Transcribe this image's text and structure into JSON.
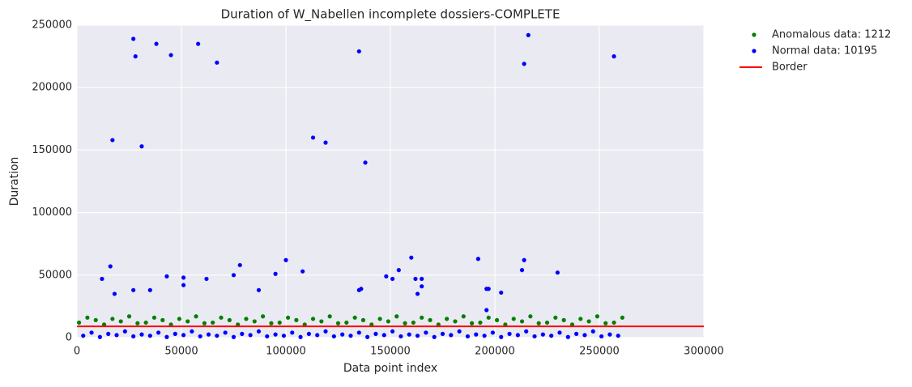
{
  "chart_data": {
    "type": "scatter",
    "title": "Duration of W_Nabellen incomplete dossiers-COMPLETE",
    "x_label": "Data point index",
    "y_label": "Duration",
    "xlim": [
      0,
      300000
    ],
    "ylim": [
      0,
      250000
    ],
    "xticks": [
      0,
      50000,
      100000,
      150000,
      200000,
      250000,
      300000
    ],
    "yticks": [
      0,
      50000,
      100000,
      150000,
      200000,
      250000
    ],
    "grid": true,
    "legend": "outside upper right",
    "series": [
      {
        "name": "Anomalous data: 1212",
        "color": "#008000",
        "kind": "scatter",
        "x": [
          1000,
          5000,
          9000,
          13000,
          17000,
          21000,
          25000,
          29000,
          33000,
          37000,
          41000,
          45000,
          49000,
          53000,
          57000,
          61000,
          65000,
          69000,
          73000,
          77000,
          81000,
          85000,
          89000,
          93000,
          97000,
          101000,
          105000,
          109000,
          113000,
          117000,
          121000,
          125000,
          129000,
          133000,
          137000,
          141000,
          145000,
          149000,
          153000,
          157000,
          161000,
          165000,
          169000,
          173000,
          177000,
          181000,
          185000,
          189000,
          193000,
          197000,
          201000,
          205000,
          209000,
          213000,
          217000,
          221000,
          225000,
          229000,
          233000,
          237000,
          241000,
          245000,
          249000,
          253000,
          257000,
          261000
        ],
        "y": [
          12000,
          16000,
          14000,
          10500,
          15000,
          13000,
          17000,
          11500,
          12000,
          16000,
          14000,
          10500,
          15000,
          13000,
          17000,
          11500,
          12000,
          16000,
          14000,
          10500,
          15000,
          13000,
          17000,
          11500,
          12000,
          16000,
          14000,
          10500,
          15000,
          13000,
          17000,
          11500,
          12000,
          16000,
          14000,
          10500,
          15000,
          13000,
          17000,
          11500,
          12000,
          16000,
          14000,
          10500,
          15000,
          13000,
          17000,
          11500,
          12000,
          16000,
          14000,
          10500,
          15000,
          13000,
          17000,
          11500,
          12000,
          16000,
          14000,
          10500,
          15000,
          13000,
          17000,
          11500,
          12000,
          16000
        ]
      },
      {
        "name": "Normal data: 10195",
        "color": "#0000ff",
        "kind": "scatter",
        "x": [
          3000,
          7000,
          11000,
          15000,
          19000,
          23000,
          27000,
          31000,
          35000,
          39000,
          43000,
          47000,
          51000,
          55000,
          59000,
          63000,
          67000,
          71000,
          75000,
          79000,
          83000,
          87000,
          91000,
          95000,
          99000,
          103000,
          107000,
          111000,
          115000,
          119000,
          123000,
          127000,
          131000,
          135000,
          139000,
          143000,
          147000,
          151000,
          155000,
          159000,
          163000,
          167000,
          171000,
          175000,
          179000,
          183000,
          187000,
          191000,
          195000,
          199000,
          203000,
          207000,
          211000,
          215000,
          219000,
          223000,
          227000,
          231000,
          235000,
          239000,
          243000,
          247000,
          251000,
          255000,
          259000,
          27000,
          28000,
          38000,
          45000,
          58000,
          67000,
          17000,
          31000,
          113000,
          119000,
          135000,
          138000,
          214000,
          216000,
          257000,
          12000,
          16000,
          18000,
          27000,
          35000,
          43000,
          51000,
          51000,
          62000,
          75000,
          78000,
          87000,
          95000,
          100000,
          108000,
          135000,
          136000,
          148000,
          151000,
          154000,
          160000,
          162000,
          163000,
          165000,
          165000,
          192000,
          196000,
          197000,
          196000,
          203000,
          213000,
          214000,
          230000
        ],
        "y": [
          1500,
          4000,
          500,
          3000,
          2000,
          5000,
          1000,
          2500,
          1500,
          4000,
          500,
          3000,
          2000,
          5000,
          1000,
          2500,
          1500,
          4000,
          500,
          3000,
          2000,
          5000,
          1000,
          2500,
          1500,
          4000,
          500,
          3000,
          2000,
          5000,
          1000,
          2500,
          1500,
          4000,
          500,
          3000,
          2000,
          5000,
          1000,
          2500,
          1500,
          4000,
          500,
          3000,
          2000,
          5000,
          1000,
          2500,
          1500,
          4000,
          500,
          3000,
          2000,
          5000,
          1000,
          2500,
          1500,
          4000,
          500,
          3000,
          2000,
          5000,
          1000,
          2500,
          1500,
          239000,
          225000,
          235000,
          226000,
          235000,
          220000,
          158000,
          153000,
          160000,
          156000,
          229000,
          140000,
          219000,
          242000,
          225000,
          47000,
          57000,
          35000,
          38000,
          38000,
          49000,
          48000,
          42000,
          47000,
          50000,
          58000,
          38000,
          51000,
          62000,
          53000,
          38000,
          39000,
          49000,
          47000,
          54000,
          64000,
          47000,
          35000,
          47000,
          41000,
          63000,
          39000,
          39000,
          22000,
          36000,
          54000,
          62000,
          52000
        ]
      },
      {
        "name": "Border",
        "color": "#ff0000",
        "kind": "line",
        "x": [
          0,
          300000
        ],
        "y": [
          9000,
          9000
        ]
      }
    ]
  }
}
